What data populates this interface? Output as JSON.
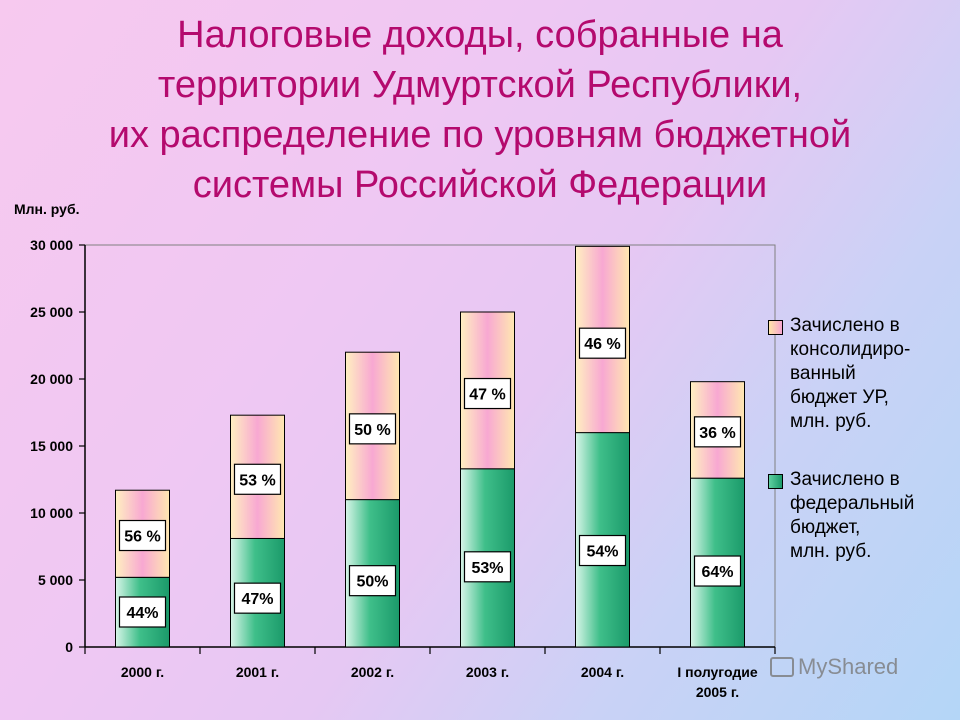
{
  "title_lines": [
    "Налоговые доходы, собранные на",
    "территории Удмуртской Республики,",
    "их распределение по уровням бюджетной",
    "системы Российской Федерации"
  ],
  "chart_data": {
    "type": "bar",
    "stacked": true,
    "ylabel": "Млн. руб.",
    "ylim": [
      0,
      30000
    ],
    "ytick_values": [
      0,
      5000,
      10000,
      15000,
      20000,
      25000,
      30000
    ],
    "ytick_labels": [
      "0",
      "5 000",
      "10 000",
      "15 000",
      "20 000",
      "25 000",
      "30 000"
    ],
    "categories": [
      "2000 г.",
      "2001 г.",
      "2002 г.",
      "2003 г.",
      "2004 г.",
      [
        "I полугодие",
        "2005 г."
      ]
    ],
    "series": [
      {
        "name": "Зачислено в федеральный бюджет, млн. руб.",
        "color": "#2fb07e",
        "values": [
          5200,
          8100,
          11000,
          13300,
          16000,
          12600
        ],
        "percent_labels": [
          "44%",
          "47%",
          "50%",
          "53%",
          "54%",
          "64%"
        ]
      },
      {
        "name": "Зачислено в консолидиро-ванный бюджет УР, млн. руб.",
        "color": "#f9b6d6",
        "values": [
          6500,
          9200,
          11000,
          11700,
          13900,
          7200
        ],
        "percent_labels": [
          "56 %",
          "53 %",
          "50 %",
          "47 %",
          "46 %",
          "36 %"
        ]
      }
    ],
    "legend_position": "right",
    "grid": false
  },
  "legend": {
    "regional_text": "Зачислено в\nконсолидиро-\nванный\nбюджет УР,\nмлн. руб.",
    "federal_text": "Зачислено в\nфедеральный\nбюджет,\nмлн. руб."
  },
  "watermark": "MyShared"
}
